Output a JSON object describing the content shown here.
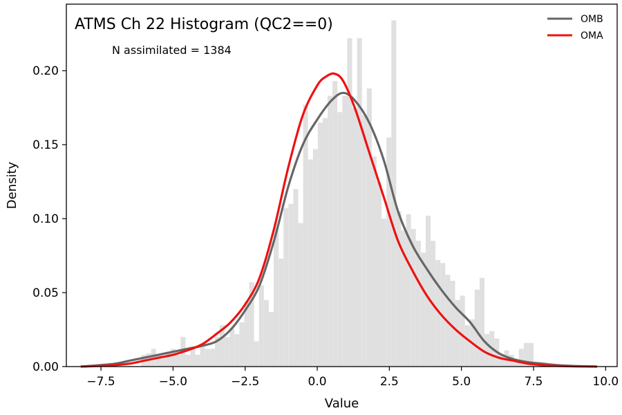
{
  "chart_data": {
    "type": "histogram",
    "title": "ATMS Ch 22 Histogram (QC2==0)",
    "annotation": "N assimilated = 1384",
    "xlabel": "Value",
    "ylabel": "Density",
    "xlim": [
      -8.7,
      10.4
    ],
    "ylim": [
      0,
      0.245
    ],
    "xticks": [
      -7.5,
      -5.0,
      -2.5,
      0.0,
      2.5,
      5.0,
      7.5,
      10.0
    ],
    "xtick_labels": [
      "−7.5",
      "−5.0",
      "−2.5",
      "0.0",
      "2.5",
      "5.0",
      "7.5",
      "10.0"
    ],
    "yticks": [
      0.0,
      0.05,
      0.1,
      0.15,
      0.2
    ],
    "ytick_labels": [
      "0.00",
      "0.05",
      "0.10",
      "0.15",
      "0.20"
    ],
    "grid": false,
    "legend_position": "top-right",
    "histogram": {
      "color": "#e0e0e0",
      "bin_width": 0.17,
      "bins": [
        [
          -6.1,
          0.008
        ],
        [
          -5.93,
          0.009
        ],
        [
          -5.76,
          0.012
        ],
        [
          -5.59,
          0.008
        ],
        [
          -5.42,
          0.006
        ],
        [
          -5.25,
          0.01
        ],
        [
          -5.08,
          0.012
        ],
        [
          -4.91,
          0.008
        ],
        [
          -4.74,
          0.02
        ],
        [
          -4.57,
          0.008
        ],
        [
          -4.4,
          0.012
        ],
        [
          -4.23,
          0.008
        ],
        [
          -4.06,
          0.014
        ],
        [
          -3.89,
          0.012
        ],
        [
          -3.72,
          0.012
        ],
        [
          -3.55,
          0.02
        ],
        [
          -3.38,
          0.028
        ],
        [
          -3.21,
          0.02
        ],
        [
          -3.04,
          0.026
        ],
        [
          -2.87,
          0.022
        ],
        [
          -2.7,
          0.03
        ],
        [
          -2.53,
          0.044
        ],
        [
          -2.36,
          0.057
        ],
        [
          -2.19,
          0.017
        ],
        [
          -2.02,
          0.055
        ],
        [
          -1.85,
          0.045
        ],
        [
          -1.68,
          0.037
        ],
        [
          -1.51,
          0.097
        ],
        [
          -1.34,
          0.073
        ],
        [
          -1.17,
          0.107
        ],
        [
          -1.0,
          0.11
        ],
        [
          -0.83,
          0.12
        ],
        [
          -0.66,
          0.097
        ],
        [
          -0.49,
          0.177
        ],
        [
          -0.32,
          0.14
        ],
        [
          -0.15,
          0.147
        ],
        [
          0.02,
          0.165
        ],
        [
          0.19,
          0.168
        ],
        [
          0.36,
          0.183
        ],
        [
          0.53,
          0.193
        ],
        [
          0.7,
          0.172
        ],
        [
          0.87,
          0.183
        ],
        [
          1.04,
          0.222
        ],
        [
          1.21,
          0.175
        ],
        [
          1.38,
          0.222
        ],
        [
          1.55,
          0.17
        ],
        [
          1.72,
          0.188
        ],
        [
          1.89,
          0.142
        ],
        [
          2.06,
          0.125
        ],
        [
          2.23,
          0.1
        ],
        [
          2.4,
          0.155
        ],
        [
          2.57,
          0.234
        ],
        [
          2.74,
          0.105
        ],
        [
          2.91,
          0.092
        ],
        [
          3.08,
          0.103
        ],
        [
          3.25,
          0.093
        ],
        [
          3.42,
          0.085
        ],
        [
          3.59,
          0.077
        ],
        [
          3.76,
          0.102
        ],
        [
          3.93,
          0.085
        ],
        [
          4.1,
          0.072
        ],
        [
          4.27,
          0.07
        ],
        [
          4.44,
          0.062
        ],
        [
          4.61,
          0.058
        ],
        [
          4.78,
          0.045
        ],
        [
          4.95,
          0.048
        ],
        [
          5.12,
          0.028
        ],
        [
          5.29,
          0.032
        ],
        [
          5.46,
          0.052
        ],
        [
          5.63,
          0.06
        ],
        [
          5.8,
          0.022
        ],
        [
          5.97,
          0.024
        ],
        [
          6.14,
          0.019
        ],
        [
          6.31,
          0.008
        ],
        [
          6.48,
          0.011
        ],
        [
          6.65,
          0.008
        ],
        [
          6.82,
          0.005
        ],
        [
          6.99,
          0.012
        ],
        [
          7.16,
          0.016
        ],
        [
          7.33,
          0.016
        ]
      ]
    },
    "series": [
      {
        "name": "OMB",
        "color": "#666666",
        "x": [
          -8.2,
          -7.5,
          -7.0,
          -6.5,
          -6.0,
          -5.5,
          -5.0,
          -4.5,
          -4.0,
          -3.5,
          -3.0,
          -2.5,
          -2.0,
          -1.5,
          -1.0,
          -0.5,
          0.0,
          0.5,
          0.9,
          1.3,
          1.8,
          2.3,
          2.8,
          3.3,
          3.8,
          4.3,
          4.8,
          5.3,
          5.8,
          6.3,
          6.8,
          7.3,
          7.8,
          8.3,
          8.8,
          9.3,
          9.7
        ],
        "y": [
          0.0,
          0.001,
          0.002,
          0.004,
          0.006,
          0.008,
          0.01,
          0.012,
          0.014,
          0.017,
          0.025,
          0.038,
          0.055,
          0.085,
          0.122,
          0.15,
          0.167,
          0.18,
          0.185,
          0.18,
          0.165,
          0.14,
          0.105,
          0.082,
          0.066,
          0.052,
          0.04,
          0.03,
          0.017,
          0.009,
          0.005,
          0.003,
          0.002,
          0.001,
          0.0005,
          0.0002,
          0.0
        ]
      },
      {
        "name": "OMA",
        "color": "#ee1111",
        "x": [
          -8.2,
          -7.5,
          -7.0,
          -6.5,
          -6.0,
          -5.5,
          -5.0,
          -4.5,
          -4.0,
          -3.5,
          -3.0,
          -2.5,
          -2.0,
          -1.5,
          -1.0,
          -0.5,
          0.0,
          0.3,
          0.6,
          0.9,
          1.3,
          1.8,
          2.3,
          2.8,
          3.3,
          3.8,
          4.3,
          4.8,
          5.3,
          5.8,
          6.3,
          6.8,
          7.3,
          7.8,
          8.3,
          8.8,
          9.3,
          9.7
        ],
        "y": [
          0.0,
          0.0005,
          0.001,
          0.002,
          0.004,
          0.006,
          0.008,
          0.011,
          0.015,
          0.022,
          0.03,
          0.042,
          0.06,
          0.093,
          0.135,
          0.17,
          0.19,
          0.196,
          0.198,
          0.193,
          0.175,
          0.145,
          0.115,
          0.085,
          0.065,
          0.048,
          0.035,
          0.025,
          0.017,
          0.01,
          0.006,
          0.004,
          0.002,
          0.001,
          0.0005,
          0.0002,
          0.0001,
          0.0
        ]
      }
    ]
  }
}
